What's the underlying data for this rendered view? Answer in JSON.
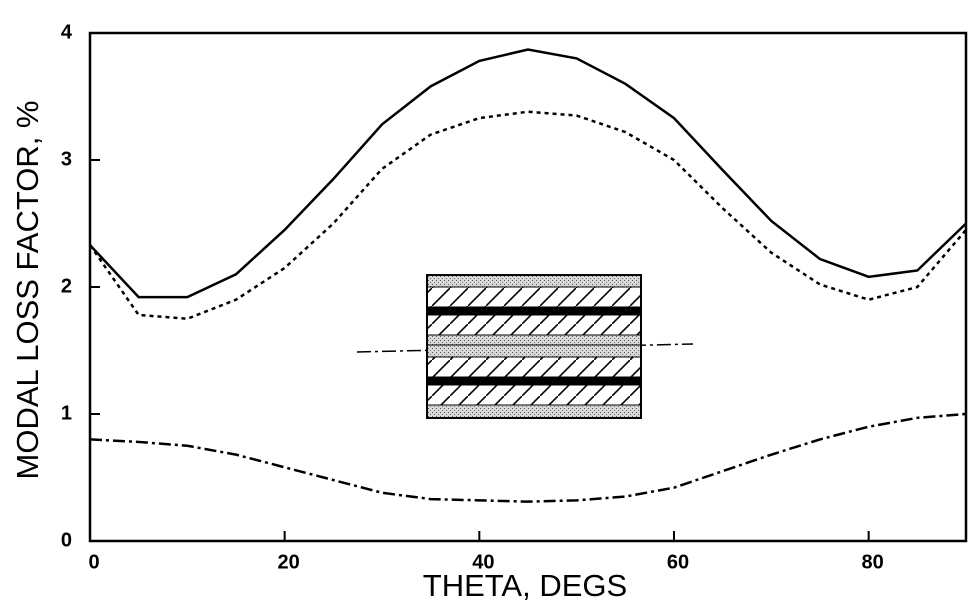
{
  "chart_data": {
    "type": "line",
    "xlabel": "THETA, DEGS",
    "ylabel": "MODAL LOSS FACTOR, %",
    "x": [
      0,
      5,
      10,
      15,
      20,
      25,
      30,
      35,
      40,
      45,
      50,
      55,
      60,
      65,
      70,
      75,
      80,
      85,
      90
    ],
    "series": [
      {
        "color": "#000000",
        "dash": "solid",
        "values": [
          2.33,
          1.92,
          1.92,
          2.1,
          2.45,
          2.85,
          3.28,
          3.58,
          3.78,
          3.87,
          3.8,
          3.6,
          3.33,
          2.92,
          2.52,
          2.22,
          2.08,
          2.13,
          2.5
        ]
      },
      {
        "color": "#000000",
        "dash": "dotted",
        "values": [
          2.33,
          1.78,
          1.75,
          1.9,
          2.15,
          2.5,
          2.93,
          3.2,
          3.33,
          3.38,
          3.35,
          3.22,
          3.0,
          2.62,
          2.27,
          2.02,
          1.9,
          2.0,
          2.45
        ]
      },
      {
        "color": "#000000",
        "dash": "dashdot",
        "values": [
          0.8,
          0.78,
          0.75,
          0.68,
          0.58,
          0.48,
          0.38,
          0.33,
          0.32,
          0.31,
          0.32,
          0.35,
          0.42,
          0.55,
          0.68,
          0.8,
          0.9,
          0.97,
          1.0
        ]
      }
    ],
    "xlim": [
      0,
      90
    ],
    "xticks": [
      0,
      20,
      40,
      60,
      80
    ],
    "ylim": [
      0,
      4
    ],
    "yticks": [
      0,
      1,
      2,
      3,
      4
    ]
  }
}
